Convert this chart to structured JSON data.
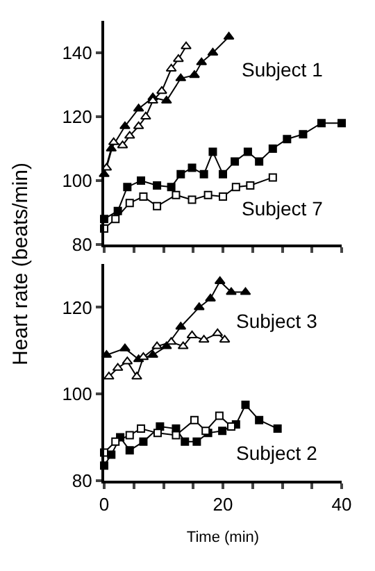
{
  "chart_data": [
    {
      "type": "line",
      "ylabel": "Heart rate (beats/min)",
      "xlim": [
        0,
        40
      ],
      "xticks": [
        0,
        {
          "value": 5,
          "label": null
        },
        {
          "value": 10,
          "label": null
        },
        {
          "value": 15,
          "label": null
        },
        20,
        {
          "value": 25,
          "label": null
        },
        {
          "value": 30,
          "label": null
        },
        {
          "value": 35,
          "label": null
        },
        40
      ],
      "ylim": [
        80,
        150
      ],
      "yticks": [
        80,
        100,
        120,
        140
      ],
      "tick_labels": "y",
      "line_style": "solid",
      "annotations": [
        "Subject 1",
        "Subject 7"
      ],
      "series": [
        {
          "color": "#000000",
          "marker": "triangle",
          "x": [
            0,
            1.2,
            3.5,
            5.8,
            8.2,
            10.5,
            12.9,
            15.2,
            16.4,
            18.3,
            21
          ],
          "values": [
            102,
            110,
            117,
            122.5,
            126,
            125,
            132,
            133,
            137,
            140,
            145
          ]
        },
        {
          "color": "#ffffff",
          "marker": "triangle",
          "x": [
            0.4,
            1.6,
            3.1,
            4.3,
            5.8,
            7,
            8.2,
            9.7,
            11.3,
            12.5,
            13.8
          ],
          "values": [
            104,
            112,
            111,
            114,
            117,
            120,
            125,
            128,
            135,
            138,
            142
          ]
        },
        {
          "color": "#000000",
          "marker": "square",
          "x": [
            0,
            2.3,
            3.9,
            6.2,
            8.9,
            11.3,
            12.9,
            14.8,
            16.8,
            18.3,
            20,
            22,
            24.2,
            26.1,
            28.4,
            30.8,
            33.5,
            36.6,
            40
          ],
          "values": [
            88,
            90.5,
            98,
            100,
            98.5,
            98,
            102,
            104,
            102,
            109,
            102,
            106,
            109,
            106,
            110,
            113,
            114.5,
            118,
            118
          ]
        },
        {
          "color": "#ffffff",
          "marker": "square",
          "x": [
            0,
            1.9,
            4.3,
            6.6,
            8.9,
            12.1,
            14.8,
            17.5,
            20,
            22.2,
            24.6,
            28.4
          ],
          "values": [
            85,
            88,
            93,
            95,
            92,
            95.5,
            94,
            95.5,
            95,
            98,
            98.5,
            101
          ]
        }
      ]
    },
    {
      "type": "line",
      "xlabel": "Time (min)",
      "xlim": [
        0,
        40
      ],
      "xticks": [
        0,
        {
          "value": 5,
          "label": null
        },
        {
          "value": 10,
          "label": null
        },
        {
          "value": 15,
          "label": null
        },
        20,
        {
          "value": 25,
          "label": null
        },
        {
          "value": 30,
          "label": null
        },
        {
          "value": 35,
          "label": null
        },
        40
      ],
      "ylim": [
        80,
        130
      ],
      "yticks": [
        80,
        100,
        120
      ],
      "line_style": "solid",
      "annotations": [
        "Subject 3",
        "Subject 2"
      ],
      "series": [
        {
          "color": "#000000",
          "marker": "triangle",
          "x": [
            0.4,
            3.5,
            5.8,
            8.2,
            10.5,
            12.9,
            16,
            17.9,
            19.5,
            21.4,
            23.8
          ],
          "values": [
            109,
            110.5,
            108,
            109,
            111,
            115.5,
            120,
            122,
            126,
            123.5,
            123.5
          ]
        },
        {
          "color": "#ffffff",
          "marker": "triangle",
          "x": [
            0.8,
            2.3,
            3.9,
            5.5,
            6.6,
            8.9,
            11.3,
            13.3,
            14.8,
            16.8,
            19.1,
            20.3
          ],
          "values": [
            104,
            106,
            107.5,
            104,
            108.5,
            111,
            112,
            111,
            113.5,
            112.5,
            114,
            112.5
          ]
        },
        {
          "color": "#000000",
          "marker": "square",
          "x": [
            0,
            1.2,
            2.7,
            4.3,
            6.6,
            9.4,
            12.1,
            13.6,
            15.6,
            17.5,
            19.9,
            22.2,
            23.8,
            26.1,
            29.2
          ],
          "values": [
            83.5,
            86,
            90,
            87,
            89,
            92.5,
            92,
            89,
            89,
            91,
            91.5,
            93,
            97.5,
            94,
            92
          ]
        },
        {
          "color": "#ffffff",
          "marker": "square",
          "x": [
            0,
            1.9,
            4.3,
            6.2,
            9,
            12.1,
            15.2,
            17.1,
            19.4,
            21.4
          ],
          "values": [
            86.5,
            89,
            90.5,
            92,
            91,
            90.5,
            94,
            91.5,
            95,
            92.5
          ]
        }
      ]
    }
  ]
}
